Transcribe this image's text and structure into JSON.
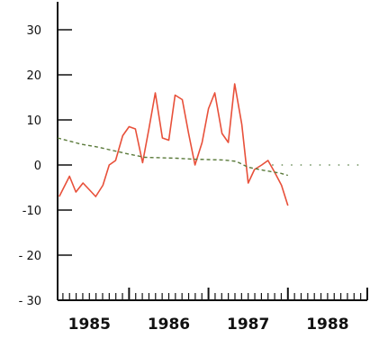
{
  "chart_data": {
    "type": "line",
    "title": "",
    "xlabel": "",
    "ylabel": "",
    "xlim": [
      1984.6,
      1988.5
    ],
    "ylim": [
      -30,
      35
    ],
    "yticks": [
      30,
      20,
      10,
      0,
      -10,
      -20,
      -30
    ],
    "ytick_labels": [
      "30",
      "20",
      "10",
      "0",
      "-10",
      "- 20",
      "- 30"
    ],
    "xticks": [
      1985,
      1986,
      1987,
      1988
    ],
    "xtick_labels": [
      "1985",
      "1986",
      "1987",
      "1988"
    ],
    "grid": false,
    "legend": "none",
    "colors": {
      "actual": "#e8503a",
      "trend": "#5a7a3a",
      "zero_ref": "#6b8e5a",
      "axis": "#111111"
    },
    "series": [
      {
        "style": "solid",
        "x": [
          1984.62,
          1984.75,
          1984.83,
          1984.92,
          1985.0,
          1985.08,
          1985.17,
          1985.25,
          1985.33,
          1985.42,
          1985.5,
          1985.58,
          1985.67,
          1985.75,
          1985.83,
          1985.92,
          1986.0,
          1986.08,
          1986.17,
          1986.25,
          1986.33,
          1986.42,
          1986.5,
          1986.58,
          1986.67,
          1986.75,
          1986.83,
          1986.92,
          1987.0,
          1987.08,
          1987.17,
          1987.25,
          1987.33,
          1987.42,
          1987.5
        ],
        "y": [
          -7,
          -2.5,
          -6,
          -4,
          -5.5,
          -7,
          -4.5,
          0,
          1,
          6.5,
          8.5,
          8,
          0.5,
          8,
          16,
          6,
          5.5,
          15.5,
          14.5,
          7,
          0,
          5,
          12.5,
          16,
          7,
          5,
          18,
          9,
          -4,
          -1,
          0,
          1,
          -1.5,
          -4.5,
          -9
        ]
      },
      {
        "style": "dashed",
        "x": [
          1984.6,
          1984.75,
          1984.9,
          1985.1,
          1985.3,
          1985.5,
          1985.7,
          1985.9,
          1986.1,
          1986.3,
          1986.5,
          1986.7,
          1986.85,
          1987.0,
          1987.2,
          1987.4,
          1987.5
        ],
        "y": [
          6,
          5.3,
          4.6,
          4,
          3.2,
          2.4,
          1.7,
          1.6,
          1.5,
          1.3,
          1.2,
          1.1,
          0.8,
          -0.5,
          -1.2,
          -1.8,
          -2.3
        ]
      },
      {
        "style": "dotted",
        "x": [
          1987.3,
          1988.45
        ],
        "y": [
          0,
          0
        ]
      }
    ]
  }
}
